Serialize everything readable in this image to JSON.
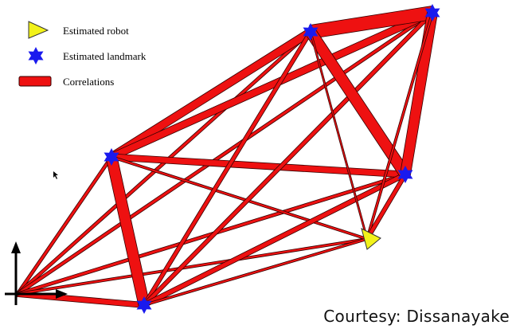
{
  "legend": {
    "robot_label": "Estimated robot",
    "landmark_label": "Estimated landmark",
    "correlation_label": "Correlations"
  },
  "credit": "Courtesy: Dissanayake",
  "colors": {
    "correlation": "#ee1111",
    "correlation_outline": "#330000",
    "landmark": "#1a1aee",
    "robot": "#f2f21a"
  },
  "icons": {
    "robot": "triangle-icon",
    "landmark": "six-point-star-icon",
    "frame": "coordinate-axes-icon",
    "cursor": "mouse-pointer-icon"
  }
}
